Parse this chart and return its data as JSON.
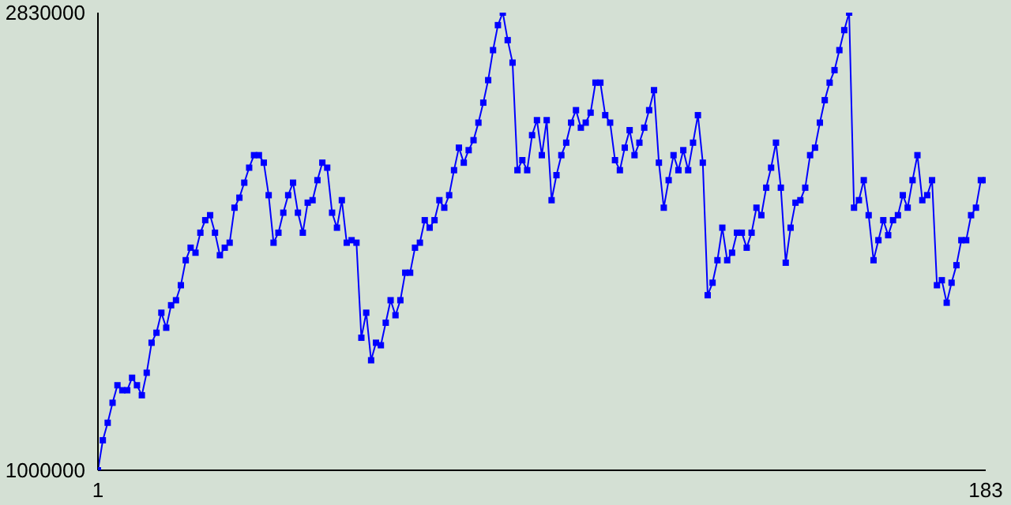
{
  "chart_data": {
    "type": "line",
    "x": [
      1,
      2,
      3,
      4,
      5,
      6,
      7,
      8,
      9,
      10,
      11,
      12,
      13,
      14,
      15,
      16,
      17,
      18,
      19,
      20,
      21,
      22,
      23,
      24,
      25,
      26,
      27,
      28,
      29,
      30,
      31,
      32,
      33,
      34,
      35,
      36,
      37,
      38,
      39,
      40,
      41,
      42,
      43,
      44,
      45,
      46,
      47,
      48,
      49,
      50,
      51,
      52,
      53,
      54,
      55,
      56,
      57,
      58,
      59,
      60,
      61,
      62,
      63,
      64,
      65,
      66,
      67,
      68,
      69,
      70,
      71,
      72,
      73,
      74,
      75,
      76,
      77,
      78,
      79,
      80,
      81,
      82,
      83,
      84,
      85,
      86,
      87,
      88,
      89,
      90,
      91,
      92,
      93,
      94,
      95,
      96,
      97,
      98,
      99,
      100,
      101,
      102,
      103,
      104,
      105,
      106,
      107,
      108,
      109,
      110,
      111,
      112,
      113,
      114,
      115,
      116,
      117,
      118,
      119,
      120,
      121,
      122,
      123,
      124,
      125,
      126,
      127,
      128,
      129,
      130,
      131,
      132,
      133,
      134,
      135,
      136,
      137,
      138,
      139,
      140,
      141,
      142,
      143,
      144,
      145,
      146,
      147,
      148,
      149,
      150,
      151,
      152,
      153,
      154,
      155,
      156,
      157,
      158,
      159,
      160,
      161,
      162,
      163,
      164,
      165,
      166,
      167,
      168,
      169,
      170,
      171,
      172,
      173,
      174,
      175,
      176,
      177,
      178,
      179,
      180,
      181,
      182,
      183
    ],
    "series": [
      {
        "color": "#0000ff",
        "values": [
          1000000,
          1120000,
          1190000,
          1270000,
          1340000,
          1320000,
          1320000,
          1370000,
          1340000,
          1300000,
          1390000,
          1510000,
          1550000,
          1630000,
          1570000,
          1660000,
          1680000,
          1740000,
          1840000,
          1890000,
          1870000,
          1950000,
          2000000,
          2020000,
          1950000,
          1860000,
          1890000,
          1910000,
          2050000,
          2090000,
          2150000,
          2210000,
          2260000,
          2260000,
          2230000,
          2100000,
          1910000,
          1950000,
          2030000,
          2100000,
          2150000,
          2030000,
          1950000,
          2070000,
          2080000,
          2160000,
          2230000,
          2210000,
          2030000,
          1970000,
          2080000,
          1910000,
          1920000,
          1910000,
          1530000,
          1630000,
          1440000,
          1510000,
          1500000,
          1590000,
          1680000,
          1620000,
          1680000,
          1790000,
          1790000,
          1890000,
          1910000,
          2000000,
          1970000,
          2000000,
          2080000,
          2050000,
          2100000,
          2200000,
          2290000,
          2230000,
          2280000,
          2320000,
          2390000,
          2470000,
          2560000,
          2680000,
          2780000,
          2830000,
          2720000,
          2630000,
          2200000,
          2240000,
          2200000,
          2340000,
          2400000,
          2260000,
          2400000,
          2080000,
          2180000,
          2260000,
          2310000,
          2390000,
          2440000,
          2370000,
          2390000,
          2430000,
          2550000,
          2550000,
          2420000,
          2390000,
          2240000,
          2200000,
          2290000,
          2360000,
          2260000,
          2310000,
          2370000,
          2440000,
          2520000,
          2230000,
          2050000,
          2160000,
          2260000,
          2200000,
          2280000,
          2200000,
          2310000,
          2420000,
          2230000,
          1700000,
          1750000,
          1840000,
          1970000,
          1840000,
          1870000,
          1950000,
          1950000,
          1890000,
          1950000,
          2050000,
          2020000,
          2130000,
          2210000,
          2310000,
          2130000,
          1830000,
          1970000,
          2070000,
          2080000,
          2130000,
          2260000,
          2290000,
          2390000,
          2480000,
          2550000,
          2600000,
          2680000,
          2760000,
          2830000,
          2050000,
          2080000,
          2160000,
          2020000,
          1840000,
          1920000,
          2000000,
          1940000,
          2000000,
          2020000,
          2100000,
          2050000,
          2160000,
          2260000,
          2080000,
          2100000,
          2160000,
          1740000,
          1760000,
          1670000,
          1750000,
          1820000,
          1920000,
          1920000,
          2020000,
          2050000,
          2160000,
          2160000
        ]
      }
    ],
    "xlim": [
      1,
      183
    ],
    "xticks": [
      1,
      183
    ],
    "ylim": [
      1000000,
      2830000
    ],
    "yticks": [
      1000000,
      2830000
    ],
    "marker": "square",
    "line_style": "solid",
    "grid": false
  }
}
